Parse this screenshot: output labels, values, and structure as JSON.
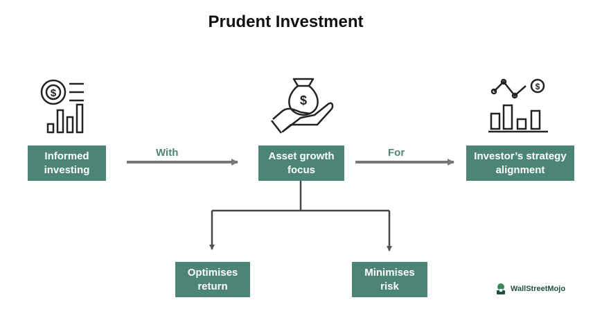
{
  "title": "Prudent Investment",
  "nodes": {
    "informed": "Informed\ninvesting",
    "asset": "Asset growth\nfocus",
    "investor": "Investor’s strategy\nalignment",
    "optimises": "Optimises\nreturn",
    "minimises": "Minimises\nrisk"
  },
  "connectors": {
    "with": "With",
    "for": "For"
  },
  "brand": {
    "name": "WallStreetMojo",
    "box_color": "#4c8575",
    "arrow_color": "#777777"
  },
  "icons": [
    "dollar-report-chart-icon",
    "money-bag-hand-icon",
    "line-bar-chart-dollar-icon"
  ]
}
